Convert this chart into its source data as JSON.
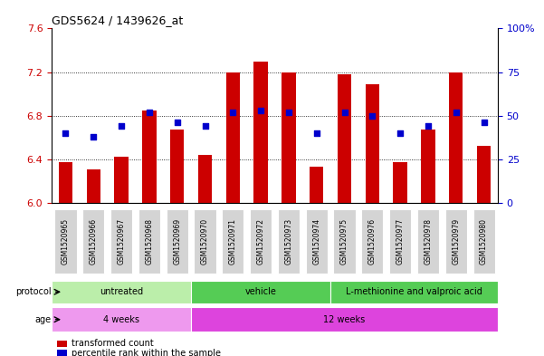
{
  "title": "GDS5624 / 1439626_at",
  "samples": [
    "GSM1520965",
    "GSM1520966",
    "GSM1520967",
    "GSM1520968",
    "GSM1520969",
    "GSM1520970",
    "GSM1520971",
    "GSM1520972",
    "GSM1520973",
    "GSM1520974",
    "GSM1520975",
    "GSM1520976",
    "GSM1520977",
    "GSM1520978",
    "GSM1520979",
    "GSM1520980"
  ],
  "bar_values": [
    6.37,
    6.31,
    6.42,
    6.85,
    6.67,
    6.44,
    7.2,
    7.3,
    7.2,
    6.33,
    7.18,
    7.09,
    6.37,
    6.67,
    7.2,
    6.52
  ],
  "percentile_values": [
    40,
    38,
    44,
    52,
    46,
    44,
    52,
    53,
    52,
    40,
    52,
    50,
    40,
    44,
    52,
    46
  ],
  "ylim_left": [
    6.0,
    7.6
  ],
  "ylim_right": [
    0,
    100
  ],
  "yticks_left": [
    6.0,
    6.4,
    6.8,
    7.2,
    7.6
  ],
  "yticks_right": [
    0,
    25,
    50,
    75,
    100
  ],
  "bar_color": "#cc0000",
  "dot_color": "#0000cc",
  "protocol_defs": [
    {
      "label": "untreated",
      "start": 0,
      "end": 4,
      "color": "#bbeeaa"
    },
    {
      "label": "vehicle",
      "start": 5,
      "end": 9,
      "color": "#55cc55"
    },
    {
      "label": "L-methionine and valproic acid",
      "start": 10,
      "end": 15,
      "color": "#55cc55"
    }
  ],
  "age_defs": [
    {
      "label": "4 weeks",
      "start": 0,
      "end": 4,
      "color": "#ee99ee"
    },
    {
      "label": "12 weeks",
      "start": 5,
      "end": 15,
      "color": "#dd44dd"
    }
  ],
  "background_color": "#ffffff",
  "left_axis_color": "#cc0000",
  "right_axis_color": "#0000cc",
  "tick_bg_color": "#d4d4d4"
}
